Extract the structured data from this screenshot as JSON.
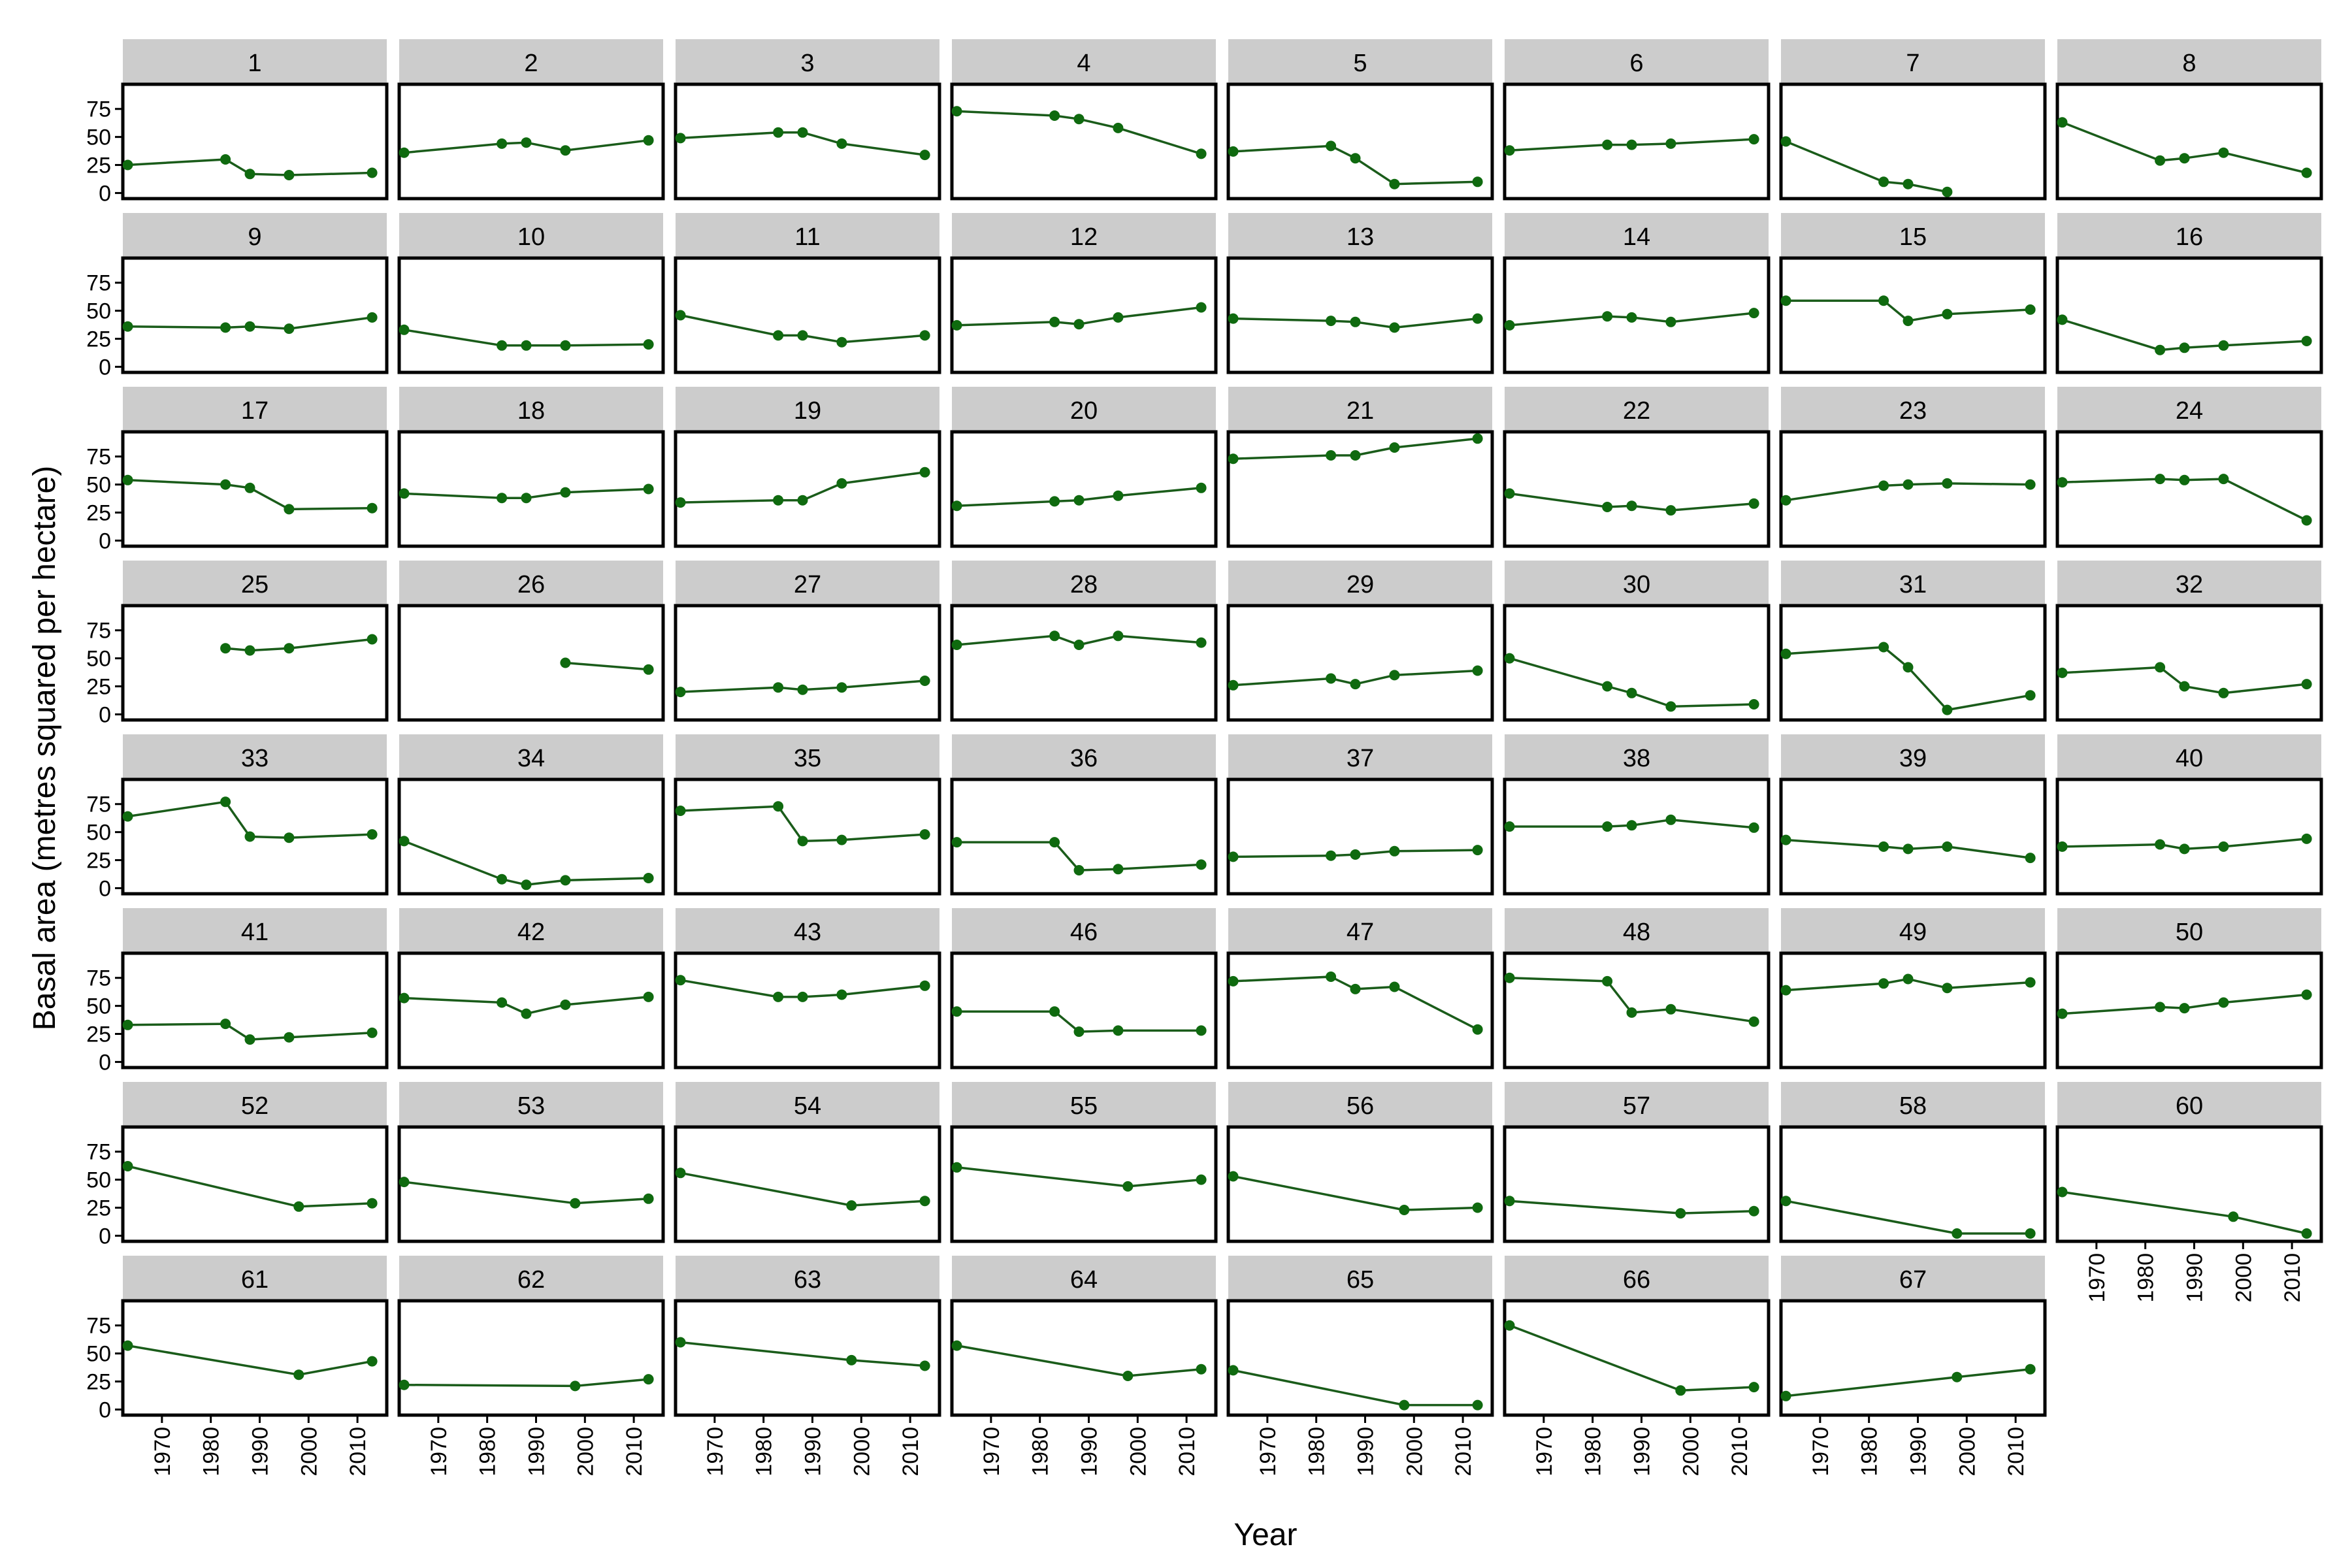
{
  "chart_data": {
    "type": "line",
    "facet": "wrap",
    "columns": 8,
    "xlabel": "Year",
    "ylabel": "Basal area (metres squared per hectare)",
    "x_ticks": [
      1970,
      1980,
      1990,
      2000,
      2010
    ],
    "xlim": [
      1962,
      2016
    ],
    "y_ticks": [
      0,
      25,
      50,
      75
    ],
    "ylim": [
      -5,
      97
    ],
    "x_tick_labels": [
      "1970",
      "1980",
      "1990",
      "2000",
      "2010"
    ],
    "y_tick_labels": [
      "0",
      "25",
      "50",
      "75"
    ],
    "colors": {
      "line": "#1a5c1a",
      "point": "#0f6a0f",
      "strip": "#cccccc",
      "panel_border": "#000000"
    },
    "panels": [
      {
        "label": "1",
        "x": [
          1963,
          1983,
          1988,
          1996,
          2013
        ],
        "y": [
          25,
          30,
          17,
          16,
          18
        ]
      },
      {
        "label": "2",
        "x": [
          1963,
          1983,
          1988,
          1996,
          2013
        ],
        "y": [
          36,
          44,
          45,
          38,
          47
        ]
      },
      {
        "label": "3",
        "x": [
          1963,
          1983,
          1988,
          1996,
          2013
        ],
        "y": [
          49,
          54,
          54,
          44,
          34
        ]
      },
      {
        "label": "4",
        "x": [
          1963,
          1983,
          1988,
          1996,
          2013
        ],
        "y": [
          73,
          69,
          66,
          58,
          35
        ]
      },
      {
        "label": "5",
        "x": [
          1963,
          1983,
          1988,
          1996,
          2013
        ],
        "y": [
          37,
          42,
          31,
          8,
          10
        ]
      },
      {
        "label": "6",
        "x": [
          1963,
          1983,
          1988,
          1996,
          2013
        ],
        "y": [
          38,
          43,
          43,
          44,
          48
        ]
      },
      {
        "label": "7",
        "x": [
          1963,
          1983,
          1988,
          1996
        ],
        "y": [
          46,
          10,
          8,
          1
        ]
      },
      {
        "label": "8",
        "x": [
          1963,
          1983,
          1988,
          1996,
          2013
        ],
        "y": [
          63,
          29,
          31,
          36,
          18
        ]
      },
      {
        "label": "9",
        "x": [
          1963,
          1983,
          1988,
          1996,
          2013
        ],
        "y": [
          36,
          35,
          36,
          34,
          44
        ]
      },
      {
        "label": "10",
        "x": [
          1963,
          1983,
          1988,
          1996,
          2013
        ],
        "y": [
          33,
          19,
          19,
          19,
          20
        ]
      },
      {
        "label": "11",
        "x": [
          1963,
          1983,
          1988,
          1996,
          2013
        ],
        "y": [
          46,
          28,
          28,
          22,
          28
        ]
      },
      {
        "label": "12",
        "x": [
          1963,
          1983,
          1988,
          1996,
          2013
        ],
        "y": [
          37,
          40,
          38,
          44,
          53
        ]
      },
      {
        "label": "13",
        "x": [
          1963,
          1983,
          1988,
          1996,
          2013
        ],
        "y": [
          43,
          41,
          40,
          35,
          43
        ]
      },
      {
        "label": "14",
        "x": [
          1963,
          1983,
          1988,
          1996,
          2013
        ],
        "y": [
          37,
          45,
          44,
          40,
          48
        ]
      },
      {
        "label": "15",
        "x": [
          1963,
          1983,
          1988,
          1996,
          2013
        ],
        "y": [
          59,
          59,
          41,
          47,
          51
        ]
      },
      {
        "label": "16",
        "x": [
          1963,
          1983,
          1988,
          1996,
          2013
        ],
        "y": [
          42,
          15,
          17,
          19,
          23
        ]
      },
      {
        "label": "17",
        "x": [
          1963,
          1983,
          1988,
          1996,
          2013
        ],
        "y": [
          54,
          50,
          47,
          28,
          29
        ]
      },
      {
        "label": "18",
        "x": [
          1963,
          1983,
          1988,
          1996,
          2013
        ],
        "y": [
          42,
          38,
          38,
          43,
          46
        ]
      },
      {
        "label": "19",
        "x": [
          1963,
          1983,
          1988,
          1996,
          2013
        ],
        "y": [
          34,
          36,
          36,
          51,
          61
        ]
      },
      {
        "label": "20",
        "x": [
          1963,
          1983,
          1988,
          1996,
          2013
        ],
        "y": [
          31,
          35,
          36,
          40,
          47
        ]
      },
      {
        "label": "21",
        "x": [
          1963,
          1983,
          1988,
          1996,
          2013
        ],
        "y": [
          73,
          76,
          76,
          83,
          91
        ]
      },
      {
        "label": "22",
        "x": [
          1963,
          1983,
          1988,
          1996,
          2013
        ],
        "y": [
          42,
          30,
          31,
          27,
          33
        ]
      },
      {
        "label": "23",
        "x": [
          1963,
          1983,
          1988,
          1996,
          2013
        ],
        "y": [
          36,
          49,
          50,
          51,
          50
        ]
      },
      {
        "label": "24",
        "x": [
          1963,
          1983,
          1988,
          1996,
          2013
        ],
        "y": [
          52,
          55,
          54,
          55,
          18
        ]
      },
      {
        "label": "25",
        "x": [
          1983,
          1988,
          1996,
          2013
        ],
        "y": [
          59,
          57,
          59,
          67
        ]
      },
      {
        "label": "26",
        "x": [
          1996,
          2013
        ],
        "y": [
          46,
          40
        ]
      },
      {
        "label": "27",
        "x": [
          1963,
          1983,
          1988,
          1996,
          2013
        ],
        "y": [
          20,
          24,
          22,
          24,
          30
        ]
      },
      {
        "label": "28",
        "x": [
          1963,
          1983,
          1988,
          1996,
          2013
        ],
        "y": [
          62,
          70,
          62,
          70,
          64
        ]
      },
      {
        "label": "29",
        "x": [
          1963,
          1983,
          1988,
          1996,
          2013
        ],
        "y": [
          26,
          32,
          27,
          35,
          39
        ]
      },
      {
        "label": "30",
        "x": [
          1963,
          1983,
          1988,
          1996,
          2013
        ],
        "y": [
          50,
          25,
          19,
          7,
          9
        ]
      },
      {
        "label": "31",
        "x": [
          1963,
          1983,
          1988,
          1996,
          2013
        ],
        "y": [
          54,
          60,
          42,
          4,
          17
        ]
      },
      {
        "label": "32",
        "x": [
          1963,
          1983,
          1988,
          1996,
          2013
        ],
        "y": [
          37,
          42,
          25,
          19,
          27
        ]
      },
      {
        "label": "33",
        "x": [
          1963,
          1983,
          1988,
          1996,
          2013
        ],
        "y": [
          64,
          77,
          46,
          45,
          48
        ]
      },
      {
        "label": "34",
        "x": [
          1963,
          1983,
          1988,
          1996,
          2013
        ],
        "y": [
          42,
          8,
          3,
          7,
          9
        ]
      },
      {
        "label": "35",
        "x": [
          1963,
          1983,
          1988,
          1996,
          2013
        ],
        "y": [
          69,
          73,
          42,
          43,
          48
        ]
      },
      {
        "label": "36",
        "x": [
          1963,
          1983,
          1988,
          1996,
          2013
        ],
        "y": [
          41,
          41,
          16,
          17,
          21
        ]
      },
      {
        "label": "37",
        "x": [
          1963,
          1983,
          1988,
          1996,
          2013
        ],
        "y": [
          28,
          29,
          30,
          33,
          34
        ]
      },
      {
        "label": "38",
        "x": [
          1963,
          1983,
          1988,
          1996,
          2013
        ],
        "y": [
          55,
          55,
          56,
          61,
          54
        ]
      },
      {
        "label": "39",
        "x": [
          1963,
          1983,
          1988,
          1996,
          2013
        ],
        "y": [
          43,
          37,
          35,
          37,
          27
        ]
      },
      {
        "label": "40",
        "x": [
          1963,
          1983,
          1988,
          1996,
          2013
        ],
        "y": [
          37,
          39,
          35,
          37,
          44
        ]
      },
      {
        "label": "41",
        "x": [
          1963,
          1983,
          1988,
          1996,
          2013
        ],
        "y": [
          33,
          34,
          20,
          22,
          26
        ]
      },
      {
        "label": "42",
        "x": [
          1963,
          1983,
          1988,
          1996,
          2013
        ],
        "y": [
          57,
          53,
          43,
          51,
          58
        ]
      },
      {
        "label": "43",
        "x": [
          1963,
          1983,
          1988,
          1996,
          2013
        ],
        "y": [
          73,
          58,
          58,
          60,
          68
        ]
      },
      {
        "label": "46",
        "x": [
          1963,
          1983,
          1988,
          1996,
          2013
        ],
        "y": [
          45,
          45,
          27,
          28,
          28
        ]
      },
      {
        "label": "47",
        "x": [
          1963,
          1983,
          1988,
          1996,
          2013
        ],
        "y": [
          72,
          76,
          65,
          67,
          29
        ]
      },
      {
        "label": "48",
        "x": [
          1963,
          1983,
          1988,
          1996,
          2013
        ],
        "y": [
          75,
          72,
          44,
          47,
          36
        ]
      },
      {
        "label": "49",
        "x": [
          1963,
          1983,
          1988,
          1996,
          2013
        ],
        "y": [
          64,
          70,
          74,
          66,
          71
        ]
      },
      {
        "label": "50",
        "x": [
          1963,
          1983,
          1988,
          1996,
          2013
        ],
        "y": [
          43,
          49,
          48,
          53,
          60
        ]
      },
      {
        "label": "52",
        "x": [
          1963,
          1998,
          2013
        ],
        "y": [
          62,
          26,
          29
        ]
      },
      {
        "label": "53",
        "x": [
          1963,
          1998,
          2013
        ],
        "y": [
          48,
          29,
          33
        ]
      },
      {
        "label": "54",
        "x": [
          1963,
          1998,
          2013
        ],
        "y": [
          56,
          27,
          31
        ]
      },
      {
        "label": "55",
        "x": [
          1963,
          1998,
          2013
        ],
        "y": [
          61,
          44,
          50
        ]
      },
      {
        "label": "56",
        "x": [
          1963,
          1998,
          2013
        ],
        "y": [
          53,
          23,
          25
        ]
      },
      {
        "label": "57",
        "x": [
          1963,
          1998,
          2013
        ],
        "y": [
          31,
          20,
          22
        ]
      },
      {
        "label": "58",
        "x": [
          1963,
          1998,
          2013
        ],
        "y": [
          31,
          2,
          2
        ]
      },
      {
        "label": "60",
        "x": [
          1963,
          1998,
          2013
        ],
        "y": [
          39,
          17,
          2
        ]
      },
      {
        "label": "61",
        "x": [
          1963,
          1998,
          2013
        ],
        "y": [
          57,
          31,
          43
        ]
      },
      {
        "label": "62",
        "x": [
          1963,
          1998,
          2013
        ],
        "y": [
          22,
          21,
          27
        ]
      },
      {
        "label": "63",
        "x": [
          1963,
          1998,
          2013
        ],
        "y": [
          60,
          44,
          39
        ]
      },
      {
        "label": "64",
        "x": [
          1963,
          1998,
          2013
        ],
        "y": [
          57,
          30,
          36
        ]
      },
      {
        "label": "65",
        "x": [
          1963,
          1998,
          2013
        ],
        "y": [
          35,
          4,
          4
        ]
      },
      {
        "label": "66",
        "x": [
          1963,
          1998,
          2013
        ],
        "y": [
          75,
          17,
          20
        ]
      },
      {
        "label": "67",
        "x": [
          1963,
          1998,
          2013
        ],
        "y": [
          12,
          29,
          36
        ]
      }
    ]
  }
}
